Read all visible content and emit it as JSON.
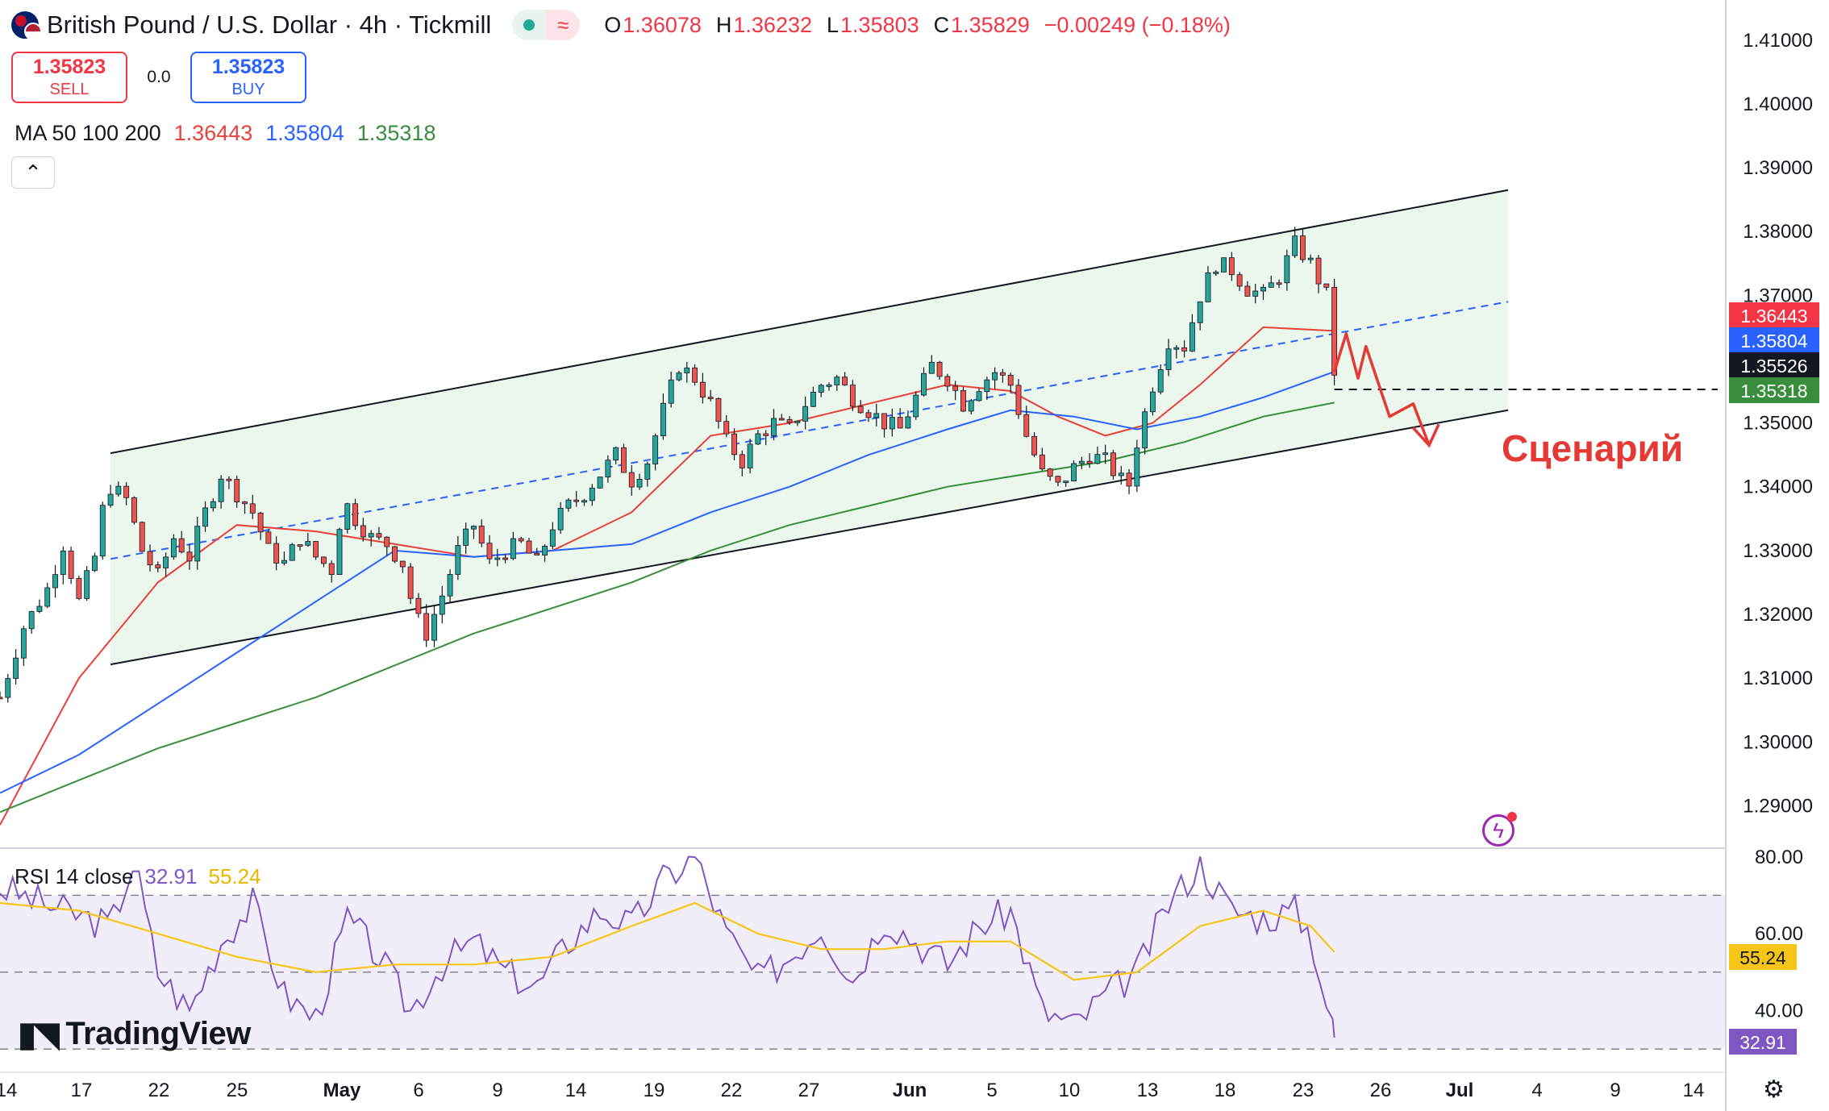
{
  "header": {
    "title": "British Pound / U.S. Dollar · 4h · Tickmill",
    "ohlc": {
      "o_label": "O",
      "o": "1.36078",
      "h_label": "H",
      "h": "1.36232",
      "l_label": "L",
      "l": "1.35803",
      "c_label": "C",
      "c": "1.35829",
      "change": "−0.00249 (−0.18%)"
    },
    "sell_price": "1.35823",
    "sell_label": "SELL",
    "buy_price": "1.35823",
    "buy_label": "BUY",
    "spread": "0.0",
    "collapse_glyph": "⌃",
    "ma_label": "MA 50 100 200",
    "ma50": "1.36443",
    "ma100": "1.35804",
    "ma200": "1.35318",
    "rsi_label": "RSI 14 close",
    "rsi": "32.91",
    "rsi_ma": "55.24"
  },
  "logo_text": "TradingView",
  "scenario_label": "Сценарий",
  "colors": {
    "up": "#26a69a",
    "down": "#ef5350",
    "ma50": "#e8413a",
    "ma100": "#2962ff",
    "ma200": "#388e3c",
    "rsi": "#7e57c2",
    "rsi_ma": "#f5c518",
    "channel": "#e8f5e9",
    "scenario": "#e53935"
  },
  "chart_data": [
    {
      "type": "candlestick",
      "title": "British Pound / U.S. Dollar · 4h · Tickmill",
      "x_ticks": [
        "14",
        "17",
        "22",
        "25",
        "May",
        "6",
        "9",
        "14",
        "19",
        "22",
        "27",
        "Jun",
        "5",
        "10",
        "13",
        "18",
        "23",
        "26",
        "Jul",
        "4",
        "9",
        "14"
      ],
      "y_ticks": [
        "1.41000",
        "1.40000",
        "1.39000",
        "1.38000",
        "1.37000",
        "1.36000",
        "1.35000",
        "1.34000",
        "1.33000",
        "1.32000",
        "1.31000",
        "1.30000",
        "1.29000"
      ],
      "ylim": [
        1.2855,
        1.4125
      ],
      "last_close": 1.35829,
      "price_labels": [
        {
          "name": "MA 50",
          "value": "1.36443",
          "color": "#f23645"
        },
        {
          "name": "MA 100",
          "value": "1.35804",
          "color": "#2962ff"
        },
        {
          "name": "price",
          "value": "1.35526",
          "color": "#131722"
        },
        {
          "name": "MA 200",
          "value": "1.35318",
          "color": "#388e3c"
        }
      ],
      "close_path": [
        [
          0,
          1.307
        ],
        [
          3,
          1.318
        ],
        [
          6,
          1.324
        ],
        [
          8,
          1.331
        ],
        [
          10,
          1.322
        ],
        [
          12,
          1.329
        ],
        [
          13.5,
          1.34
        ],
        [
          14,
          1.34
        ],
        [
          16,
          1.338
        ],
        [
          18,
          1.33
        ],
        [
          20,
          1.326
        ],
        [
          22,
          1.332
        ],
        [
          24,
          1.329
        ],
        [
          26,
          1.336
        ],
        [
          28,
          1.342
        ],
        [
          30,
          1.339
        ],
        [
          32,
          1.336
        ],
        [
          34,
          1.33
        ],
        [
          36,
          1.328
        ],
        [
          38,
          1.332
        ],
        [
          40,
          1.329
        ],
        [
          42,
          1.327
        ],
        [
          43.5,
          1.338
        ],
        [
          45,
          1.335
        ],
        [
          47,
          1.332
        ],
        [
          49,
          1.331
        ],
        [
          51,
          1.328
        ],
        [
          52.5,
          1.32
        ],
        [
          54,
          1.317
        ],
        [
          56,
          1.323
        ],
        [
          58,
          1.33
        ],
        [
          60,
          1.334
        ],
        [
          62,
          1.328
        ],
        [
          64,
          1.33
        ],
        [
          66,
          1.331
        ],
        [
          68,
          1.328
        ],
        [
          70,
          1.334
        ],
        [
          72,
          1.337
        ],
        [
          74,
          1.339
        ],
        [
          76,
          1.342
        ],
        [
          78,
          1.345
        ],
        [
          80,
          1.341
        ],
        [
          82,
          1.344
        ],
        [
          84,
          1.352
        ],
        [
          86,
          1.359
        ],
        [
          88,
          1.357
        ],
        [
          90,
          1.353
        ],
        [
          92,
          1.347
        ],
        [
          94,
          1.344
        ],
        [
          96,
          1.348
        ],
        [
          98,
          1.35
        ],
        [
          100,
          1.349
        ],
        [
          102,
          1.353
        ],
        [
          104,
          1.356
        ],
        [
          106,
          1.357
        ],
        [
          108,
          1.354
        ],
        [
          110,
          1.352
        ],
        [
          112,
          1.35
        ],
        [
          114,
          1.349
        ],
        [
          116,
          1.354
        ],
        [
          118,
          1.359
        ],
        [
          120,
          1.357
        ],
        [
          122,
          1.353
        ],
        [
          124,
          1.356
        ],
        [
          126,
          1.358
        ],
        [
          128,
          1.356
        ],
        [
          130,
          1.348
        ],
        [
          132,
          1.342
        ],
        [
          134,
          1.34
        ],
        [
          136,
          1.343
        ],
        [
          138,
          1.345
        ],
        [
          140,
          1.344
        ],
        [
          142,
          1.341
        ],
        [
          143.5,
          1.34
        ],
        [
          144,
          1.347
        ],
        [
          146,
          1.356
        ],
        [
          148,
          1.363
        ],
        [
          150,
          1.362
        ],
        [
          152,
          1.37
        ],
        [
          154,
          1.375
        ],
        [
          156,
          1.374
        ],
        [
          158,
          1.371
        ],
        [
          160,
          1.37
        ],
        [
          162,
          1.373
        ],
        [
          164,
          1.378
        ],
        [
          166,
          1.375
        ],
        [
          168,
          1.37
        ],
        [
          169,
          1.358
        ]
      ],
      "ma_lines": [
        {
          "name": "MA 50",
          "points": [
            [
              0,
              1.287
            ],
            [
              10,
              1.31
            ],
            [
              20,
              1.325
            ],
            [
              30,
              1.334
            ],
            [
              40,
              1.333
            ],
            [
              50,
              1.331
            ],
            [
              60,
              1.329
            ],
            [
              70,
              1.33
            ],
            [
              80,
              1.336
            ],
            [
              90,
              1.348
            ],
            [
              100,
              1.35
            ],
            [
              110,
              1.353
            ],
            [
              120,
              1.356
            ],
            [
              128,
              1.355
            ],
            [
              134,
              1.351
            ],
            [
              140,
              1.348
            ],
            [
              146,
              1.35
            ],
            [
              152,
              1.356
            ],
            [
              160,
              1.365
            ],
            [
              169,
              1.36443
            ]
          ]
        },
        {
          "name": "MA 100",
          "points": [
            [
              0,
              1.292
            ],
            [
              10,
              1.298
            ],
            [
              20,
              1.306
            ],
            [
              30,
              1.314
            ],
            [
              40,
              1.322
            ],
            [
              50,
              1.33
            ],
            [
              60,
              1.329
            ],
            [
              70,
              1.33
            ],
            [
              80,
              1.331
            ],
            [
              90,
              1.336
            ],
            [
              100,
              1.34
            ],
            [
              110,
              1.345
            ],
            [
              120,
              1.349
            ],
            [
              128,
              1.352
            ],
            [
              136,
              1.351
            ],
            [
              144,
              1.349
            ],
            [
              152,
              1.351
            ],
            [
              160,
              1.354
            ],
            [
              169,
              1.35804
            ]
          ]
        },
        {
          "name": "MA 200",
          "points": [
            [
              0,
              1.289
            ],
            [
              10,
              1.294
            ],
            [
              20,
              1.299
            ],
            [
              30,
              1.303
            ],
            [
              40,
              1.307
            ],
            [
              50,
              1.312
            ],
            [
              60,
              1.317
            ],
            [
              70,
              1.321
            ],
            [
              80,
              1.325
            ],
            [
              90,
              1.33
            ],
            [
              100,
              1.334
            ],
            [
              110,
              1.337
            ],
            [
              120,
              1.34
            ],
            [
              130,
              1.342
            ],
            [
              140,
              1.344
            ],
            [
              150,
              1.347
            ],
            [
              160,
              1.351
            ],
            [
              169,
              1.35318
            ]
          ]
        }
      ],
      "channel": {
        "upper": [
          [
            0,
            1.342
          ],
          [
            191,
            1.3865
          ]
        ],
        "lower": [
          [
            0,
            1.309
          ],
          [
            191,
            1.352
          ]
        ],
        "mid": [
          [
            0,
            1.3255
          ],
          [
            191,
            1.369
          ]
        ]
      },
      "horizontal_level": 1.35526,
      "scenario_path": [
        [
          169,
          1.358
        ],
        [
          170.5,
          1.364
        ],
        [
          172,
          1.357
        ],
        [
          173,
          1.362
        ],
        [
          176,
          1.351
        ],
        [
          179,
          1.353
        ],
        [
          181,
          1.3465
        ]
      ]
    },
    {
      "type": "line",
      "title": "RSI 14 close",
      "y_ticks": [
        "80.00",
        "60.00",
        "40.00"
      ],
      "ylim": [
        25,
        81
      ],
      "bands": [
        30,
        50,
        70
      ],
      "value_labels": [
        {
          "name": "RSI MA",
          "value": "55.24",
          "color": "#f5c518"
        },
        {
          "name": "RSI",
          "value": "32.91",
          "color": "#7e57c2"
        }
      ],
      "series": [
        {
          "name": "RSI",
          "points": [
            [
              0,
              72
            ],
            [
              8,
              66
            ],
            [
              14,
              62
            ],
            [
              17,
              79
            ],
            [
              20,
              50
            ],
            [
              24,
              40
            ],
            [
              28,
              58
            ],
            [
              32,
              68
            ],
            [
              36,
              44
            ],
            [
              40,
              38
            ],
            [
              44,
              64
            ],
            [
              48,
              54
            ],
            [
              52,
              40
            ],
            [
              56,
              52
            ],
            [
              60,
              58
            ],
            [
              64,
              50
            ],
            [
              68,
              46
            ],
            [
              72,
              58
            ],
            [
              76,
              66
            ],
            [
              80,
              62
            ],
            [
              84,
              74
            ],
            [
              88,
              80
            ],
            [
              92,
              60
            ],
            [
              96,
              48
            ],
            [
              100,
              54
            ],
            [
              104,
              62
            ],
            [
              108,
              48
            ],
            [
              112,
              64
            ],
            [
              116,
              58
            ],
            [
              120,
              52
            ],
            [
              124,
              62
            ],
            [
              128,
              66
            ],
            [
              132,
              40
            ],
            [
              136,
              36
            ],
            [
              140,
              44
            ],
            [
              144,
              50
            ],
            [
              148,
              68
            ],
            [
              152,
              78
            ],
            [
              156,
              66
            ],
            [
              160,
              64
            ],
            [
              164,
              66
            ],
            [
              166,
              60
            ],
            [
              169,
              33
            ]
          ]
        },
        {
          "name": "RSI MA",
          "points": [
            [
              0,
              68
            ],
            [
              10,
              66
            ],
            [
              20,
              60
            ],
            [
              30,
              54
            ],
            [
              40,
              50
            ],
            [
              50,
              52
            ],
            [
              60,
              52
            ],
            [
              70,
              54
            ],
            [
              80,
              62
            ],
            [
              88,
              68
            ],
            [
              96,
              60
            ],
            [
              104,
              56
            ],
            [
              112,
              56
            ],
            [
              120,
              58
            ],
            [
              128,
              58
            ],
            [
              136,
              48
            ],
            [
              144,
              50
            ],
            [
              152,
              62
            ],
            [
              160,
              66
            ],
            [
              166,
              62
            ],
            [
              169,
              55.24
            ]
          ]
        }
      ]
    }
  ]
}
